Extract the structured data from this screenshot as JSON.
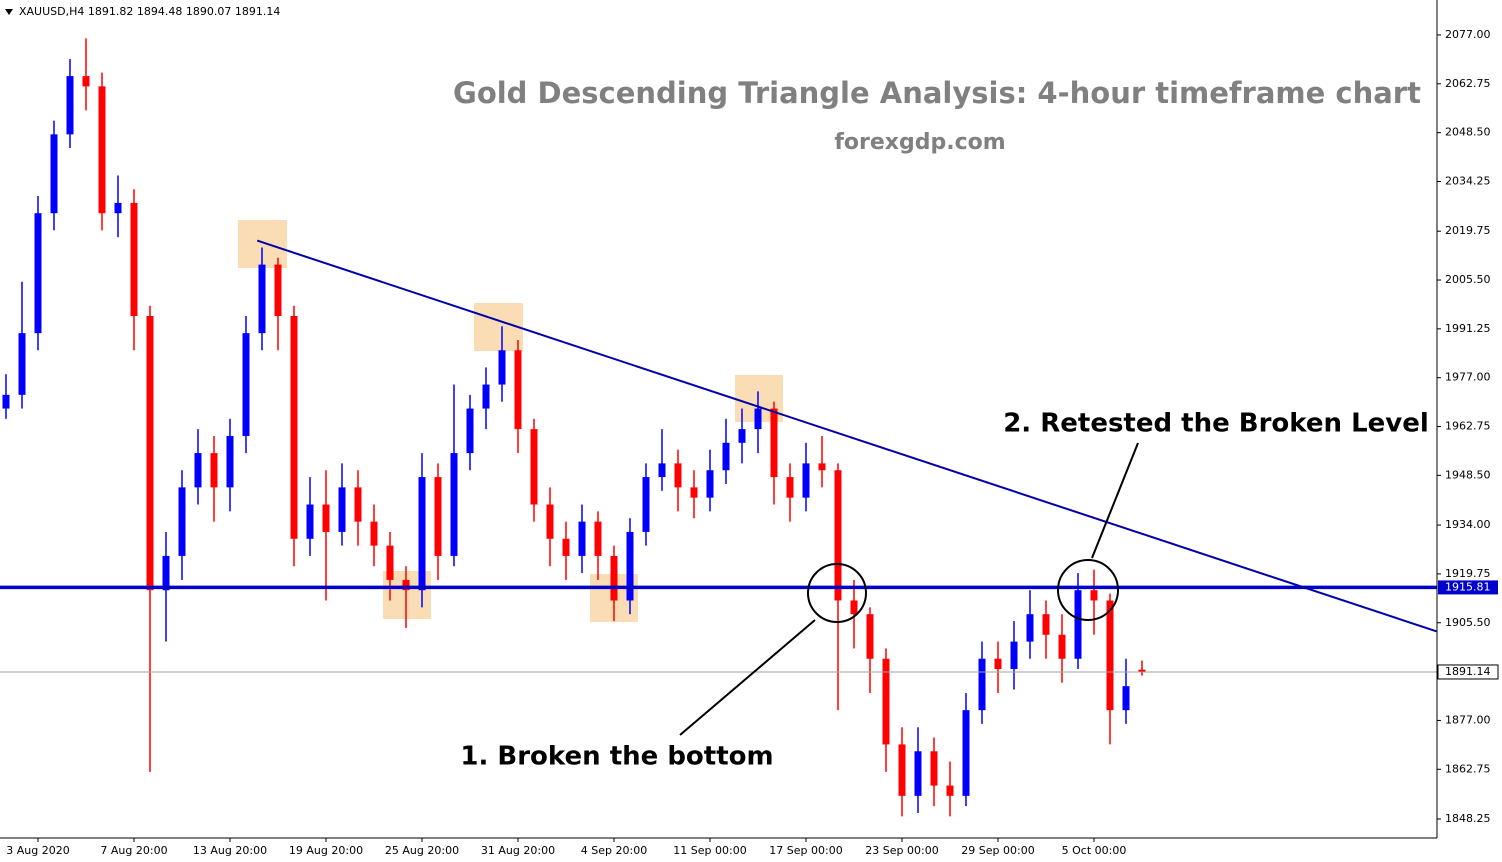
{
  "chart_data": {
    "type": "candlestick",
    "symbol": "XAUUSD,H4",
    "title": "Gold Descending Triangle Analysis: 4-hour timeframe chart",
    "subtitle": "forexgdp.com",
    "annotations": [
      "1. Broken the bottom",
      "2. Retested the Broken Level"
    ],
    "categories": [
      null,
      null,
      "3 Aug 2020",
      null,
      null,
      null,
      null,
      null,
      "7 Aug 20:00",
      null,
      null,
      null,
      null,
      null,
      "13 Aug 20:00",
      null,
      null,
      null,
      null,
      null,
      "19 Aug 20:00",
      null,
      null,
      null,
      null,
      null,
      "25 Aug 20:00",
      null,
      null,
      null,
      null,
      null,
      "31 Aug 20:00",
      null,
      null,
      null,
      null,
      null,
      "4 Sep 20:00",
      null,
      null,
      null,
      null,
      null,
      "11 Sep 00:00",
      null,
      null,
      null,
      null,
      null,
      "17 Sep 00:00",
      null,
      null,
      null,
      null,
      null,
      "23 Sep 00:00",
      null,
      null,
      null,
      null,
      null,
      "29 Sep 00:00",
      null,
      null,
      null,
      null,
      null,
      "5 Oct 00:00",
      null,
      null,
      null
    ],
    "open": [
      1968,
      1972,
      1990,
      2025,
      2048,
      2065,
      2062,
      2025,
      2028,
      1995,
      1915,
      1925,
      1945,
      1955,
      1945,
      1960,
      1990,
      2010,
      1995,
      1930,
      1940,
      1932,
      1945,
      1935,
      1928,
      1918,
      1915,
      1948,
      1925,
      1955,
      1968,
      1975,
      1985,
      1962,
      1940,
      1930,
      1925,
      1935,
      1925,
      1912,
      1932,
      1948,
      1952,
      1945,
      1942,
      1950,
      1958,
      1962,
      1968,
      1948,
      1942,
      1952,
      1950,
      1912,
      1908,
      1895,
      1870,
      1855,
      1868,
      1858,
      1855,
      1880,
      1895,
      1892,
      1900,
      1908,
      1902,
      1895,
      1915,
      1912,
      1880,
      1891.82
    ],
    "high": [
      1978,
      2005,
      2030,
      2052,
      2070,
      2076,
      2066,
      2036,
      2032,
      1998,
      1932,
      1950,
      1962,
      1960,
      1965,
      1995,
      2015,
      2012,
      1998,
      1948,
      1950,
      1952,
      1950,
      1940,
      1932,
      1922,
      1955,
      1952,
      1975,
      1972,
      1980,
      1992,
      1988,
      1965,
      1945,
      1935,
      1940,
      1938,
      1928,
      1936,
      1952,
      1962,
      1956,
      1950,
      1956,
      1965,
      1968,
      1973,
      1970,
      1952,
      1958,
      1960,
      1952,
      1918,
      1910,
      1898,
      1875,
      1875,
      1872,
      1865,
      1885,
      1900,
      1900,
      1906,
      1915,
      1912,
      1908,
      1920,
      1921,
      1914,
      1895,
      1894.48
    ],
    "low": [
      1965,
      1968,
      1985,
      2020,
      2044,
      2055,
      2020,
      2018,
      1985,
      1862,
      1900,
      1918,
      1940,
      1935,
      1938,
      1955,
      1985,
      1985,
      1922,
      1925,
      1912,
      1928,
      1928,
      1922,
      1912,
      1904,
      1910,
      1918,
      1922,
      1950,
      1962,
      1970,
      1955,
      1935,
      1922,
      1918,
      1920,
      1918,
      1906,
      1908,
      1928,
      1944,
      1938,
      1936,
      1938,
      1946,
      1952,
      1955,
      1940,
      1935,
      1938,
      1945,
      1880,
      1898,
      1885,
      1862,
      1849,
      1850,
      1852,
      1849,
      1852,
      1876,
      1885,
      1886,
      1895,
      1895,
      1888,
      1892,
      1902,
      1870,
      1876,
      1890.07
    ],
    "close": [
      1972,
      1990,
      2025,
      2048,
      2065,
      2062,
      2025,
      2028,
      1995,
      1915,
      1925,
      1945,
      1955,
      1945,
      1960,
      1990,
      2010,
      1995,
      1930,
      1940,
      1932,
      1945,
      1935,
      1928,
      1918,
      1915,
      1948,
      1925,
      1955,
      1968,
      1975,
      1985,
      1962,
      1940,
      1930,
      1925,
      1935,
      1925,
      1912,
      1932,
      1948,
      1952,
      1945,
      1942,
      1950,
      1958,
      1962,
      1968,
      1948,
      1942,
      1952,
      1950,
      1912,
      1908,
      1895,
      1870,
      1855,
      1868,
      1858,
      1855,
      1880,
      1895,
      1892,
      1900,
      1908,
      1902,
      1895,
      1915,
      1912,
      1880,
      1887,
      1891.14
    ],
    "up_color": "#0000ff",
    "down_color": "#ff0000",
    "ylim": [
      1842.7,
      2087.2
    ],
    "yticks": [
      {
        "value": 2077,
        "label": "2077.00"
      },
      {
        "value": 2062.75,
        "label": "2062.75"
      },
      {
        "value": 2048.5,
        "label": "2048.50"
      },
      {
        "value": 2034.25,
        "label": "2034.25"
      },
      {
        "value": 2019.75,
        "label": "2019.75"
      },
      {
        "value": 2005.5,
        "label": "2005.50"
      },
      {
        "value": 1991.25,
        "label": "1991.25"
      },
      {
        "value": 1977,
        "label": "1977.00"
      },
      {
        "value": 1962.75,
        "label": "1962.75"
      },
      {
        "value": 1948.5,
        "label": "1948.50"
      },
      {
        "value": 1934,
        "label": "1934.00"
      },
      {
        "value": 1919.75,
        "label": "1919.75"
      },
      {
        "value": 1905.5,
        "label": "1905.50"
      },
      {
        "value": 1877,
        "label": "1877.00"
      },
      {
        "value": 1862.75,
        "label": "1862.75"
      },
      {
        "value": 1848.25,
        "label": "1848.25"
      }
    ],
    "support_level": 1915.81,
    "support_color": "#0000cc",
    "trendline": {
      "x": [
        15.7,
        89.4
      ],
      "y": [
        2017,
        1903
      ],
      "color": "#0000aa"
    }
  }
}
